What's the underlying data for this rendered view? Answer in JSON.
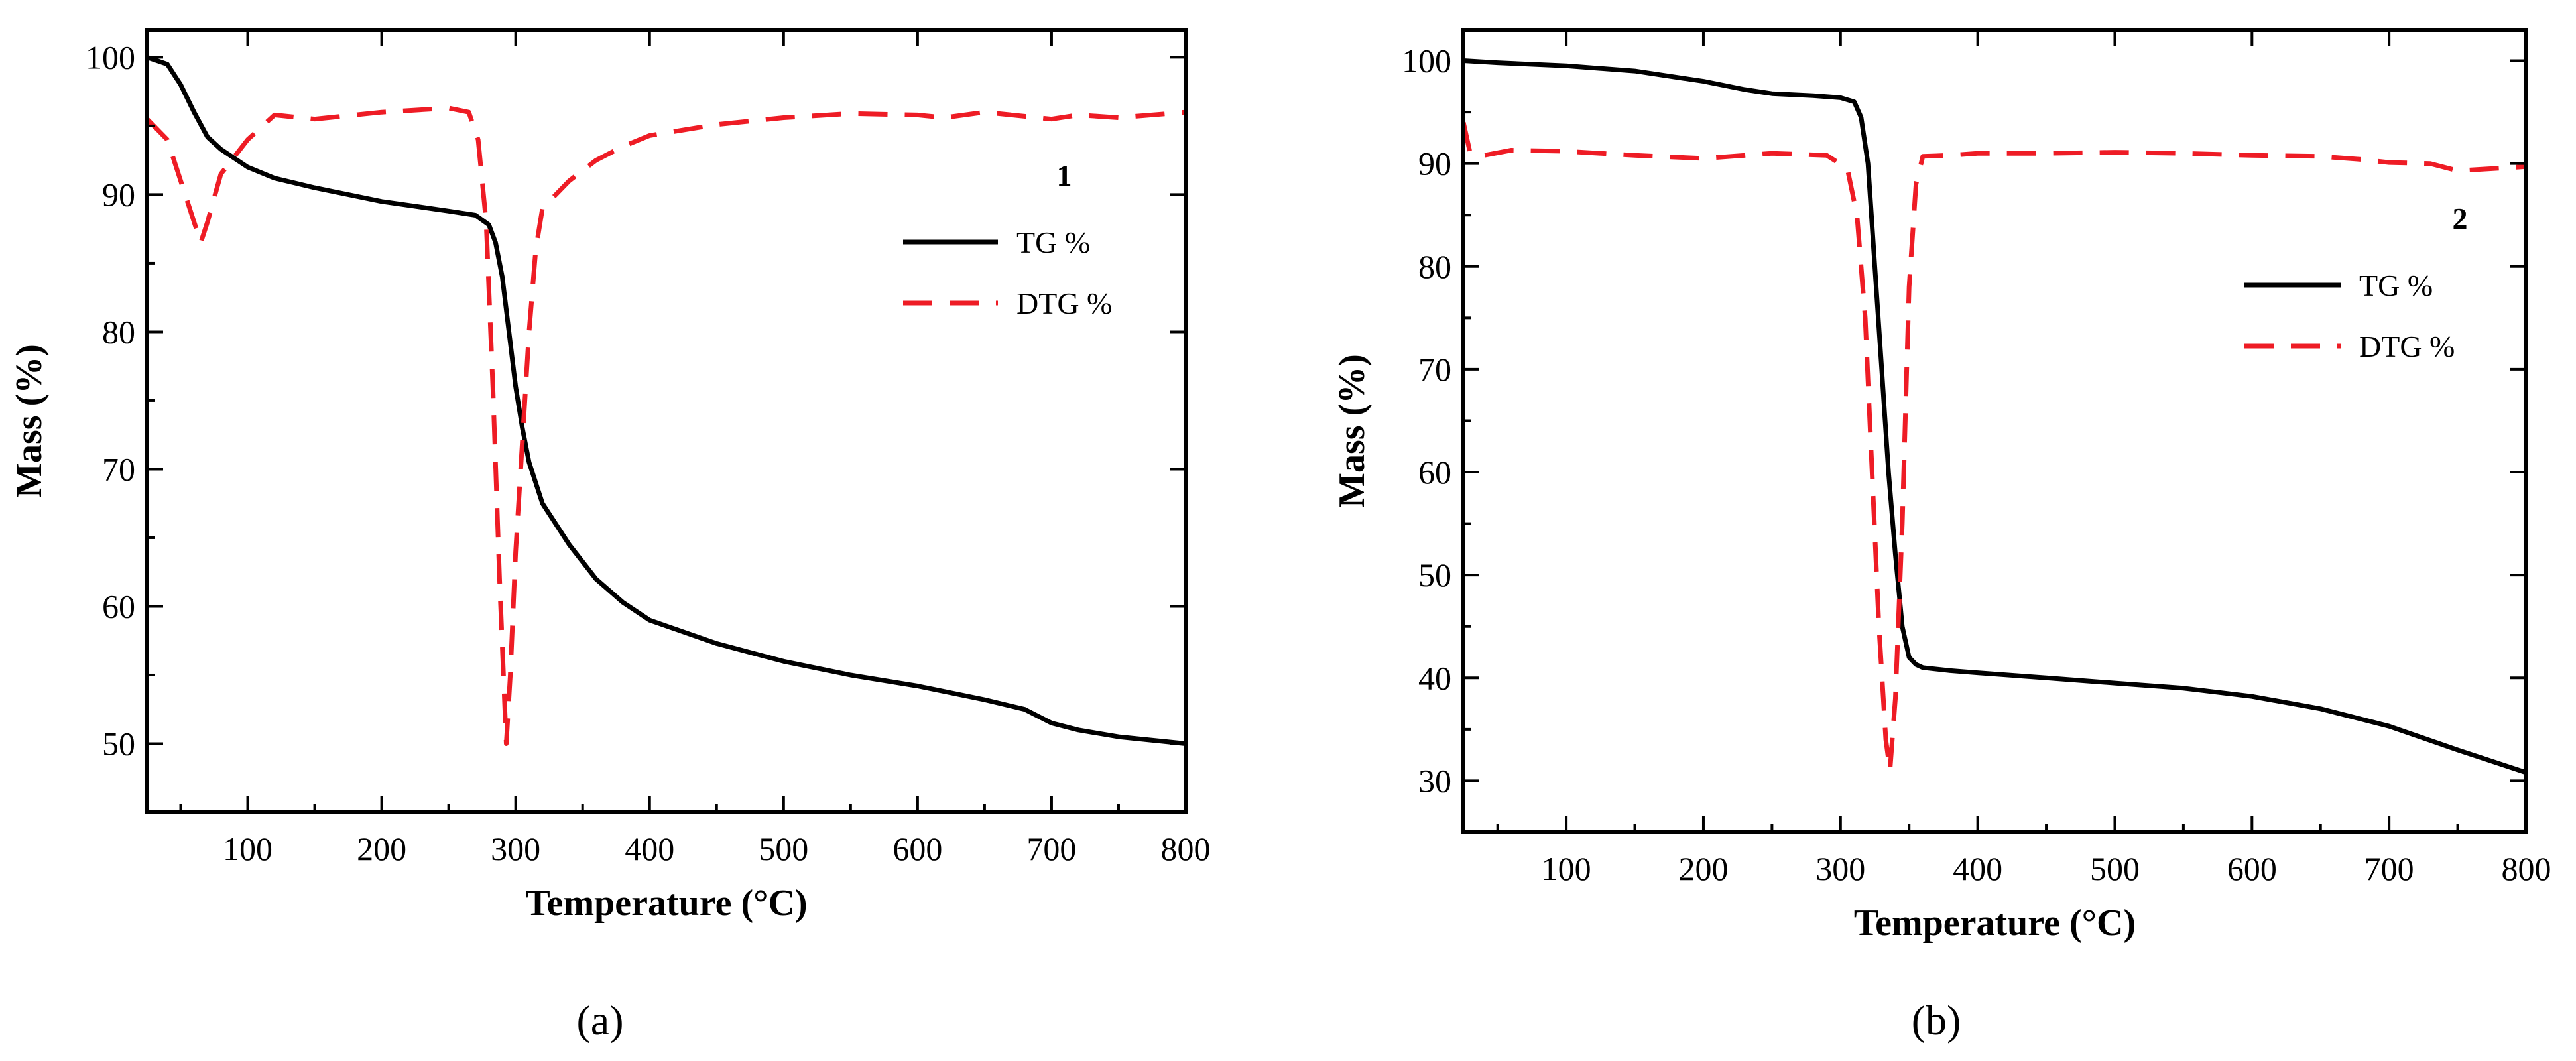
{
  "chart_data": [
    {
      "type": "line",
      "panel_id": "a",
      "caption": "(a)",
      "panel_number": "1",
      "xlabel": "Temperature (°C)",
      "ylabel": "Mass (%)",
      "xlim": [
        25,
        800
      ],
      "ylim": [
        45,
        102
      ],
      "xticks": [
        100,
        200,
        300,
        400,
        500,
        600,
        700,
        800
      ],
      "yticks": [
        50,
        60,
        70,
        80,
        90,
        100
      ],
      "grid": false,
      "legend_position": "right",
      "series": [
        {
          "name": "TG %",
          "color": "#000000",
          "dash": "solid",
          "x": [
            25,
            40,
            50,
            60,
            70,
            80,
            100,
            120,
            150,
            200,
            250,
            270,
            280,
            285,
            290,
            295,
            300,
            305,
            310,
            320,
            340,
            360,
            380,
            400,
            450,
            500,
            550,
            600,
            650,
            680,
            700,
            720,
            750,
            800
          ],
          "y": [
            100,
            99.5,
            98,
            96,
            94.2,
            93.3,
            92,
            91.2,
            90.5,
            89.5,
            88.8,
            88.5,
            87.8,
            86.5,
            84,
            80,
            76,
            73,
            70.5,
            67.5,
            64.5,
            62,
            60.3,
            59,
            57.3,
            56,
            55,
            54.2,
            53.2,
            52.5,
            51.5,
            51,
            50.5,
            50
          ]
        },
        {
          "name": "DTG %",
          "color": "#ee1c25",
          "dash": "dashed",
          "x": [
            25,
            40,
            50,
            60,
            65,
            70,
            80,
            100,
            120,
            150,
            200,
            250,
            265,
            272,
            278,
            283,
            288,
            293,
            296,
            300,
            305,
            310,
            315,
            320,
            330,
            340,
            360,
            380,
            400,
            450,
            500,
            550,
            600,
            620,
            650,
            700,
            720,
            750,
            800
          ],
          "y": [
            95.5,
            94,
            91,
            88,
            86.5,
            88,
            91.5,
            94,
            95.8,
            95.5,
            96,
            96.3,
            96,
            94,
            88,
            76,
            62,
            50,
            55,
            64,
            72,
            80,
            86,
            89,
            90,
            91,
            92.5,
            93.5,
            94.3,
            95.1,
            95.6,
            95.9,
            95.8,
            95.6,
            96,
            95.5,
            95.8,
            95.6,
            96
          ]
        }
      ]
    },
    {
      "type": "line",
      "panel_id": "b",
      "caption": "(b)",
      "panel_number": "2",
      "xlabel": "Temperature (°C)",
      "ylabel": "Mass (%)",
      "xlim": [
        25,
        800
      ],
      "ylim": [
        25,
        103
      ],
      "xticks": [
        100,
        200,
        300,
        400,
        500,
        600,
        700,
        800
      ],
      "yticks": [
        30,
        40,
        50,
        60,
        70,
        80,
        90,
        100
      ],
      "grid": false,
      "legend_position": "right",
      "series": [
        {
          "name": "TG %",
          "color": "#000000",
          "dash": "solid",
          "x": [
            25,
            50,
            100,
            150,
            200,
            230,
            250,
            280,
            300,
            310,
            315,
            320,
            325,
            330,
            335,
            340,
            345,
            350,
            355,
            360,
            380,
            400,
            450,
            500,
            550,
            600,
            650,
            700,
            750,
            800
          ],
          "y": [
            100,
            99.8,
            99.5,
            99,
            98,
            97.2,
            96.8,
            96.6,
            96.4,
            96,
            94.5,
            90,
            80,
            70,
            60,
            52,
            45,
            42,
            41.3,
            41,
            40.7,
            40.5,
            40,
            39.5,
            39,
            38.2,
            37,
            35.3,
            33,
            30.8
          ]
        },
        {
          "name": "DTG %",
          "color": "#ee1c25",
          "dash": "dashed",
          "x": [
            25,
            30,
            40,
            60,
            100,
            150,
            200,
            250,
            290,
            305,
            312,
            318,
            323,
            328,
            333,
            336,
            340,
            345,
            350,
            355,
            360,
            380,
            400,
            450,
            500,
            550,
            600,
            650,
            680,
            700,
            730,
            750,
            800
          ],
          "y": [
            94,
            91,
            90.8,
            91.3,
            91.2,
            90.8,
            90.5,
            91,
            90.8,
            89.5,
            85,
            75,
            60,
            45,
            34,
            31,
            38,
            55,
            78,
            88,
            90.7,
            90.8,
            91,
            91,
            91.1,
            91,
            90.8,
            90.7,
            90.4,
            90.1,
            90,
            89.3,
            89.7
          ]
        }
      ]
    }
  ]
}
